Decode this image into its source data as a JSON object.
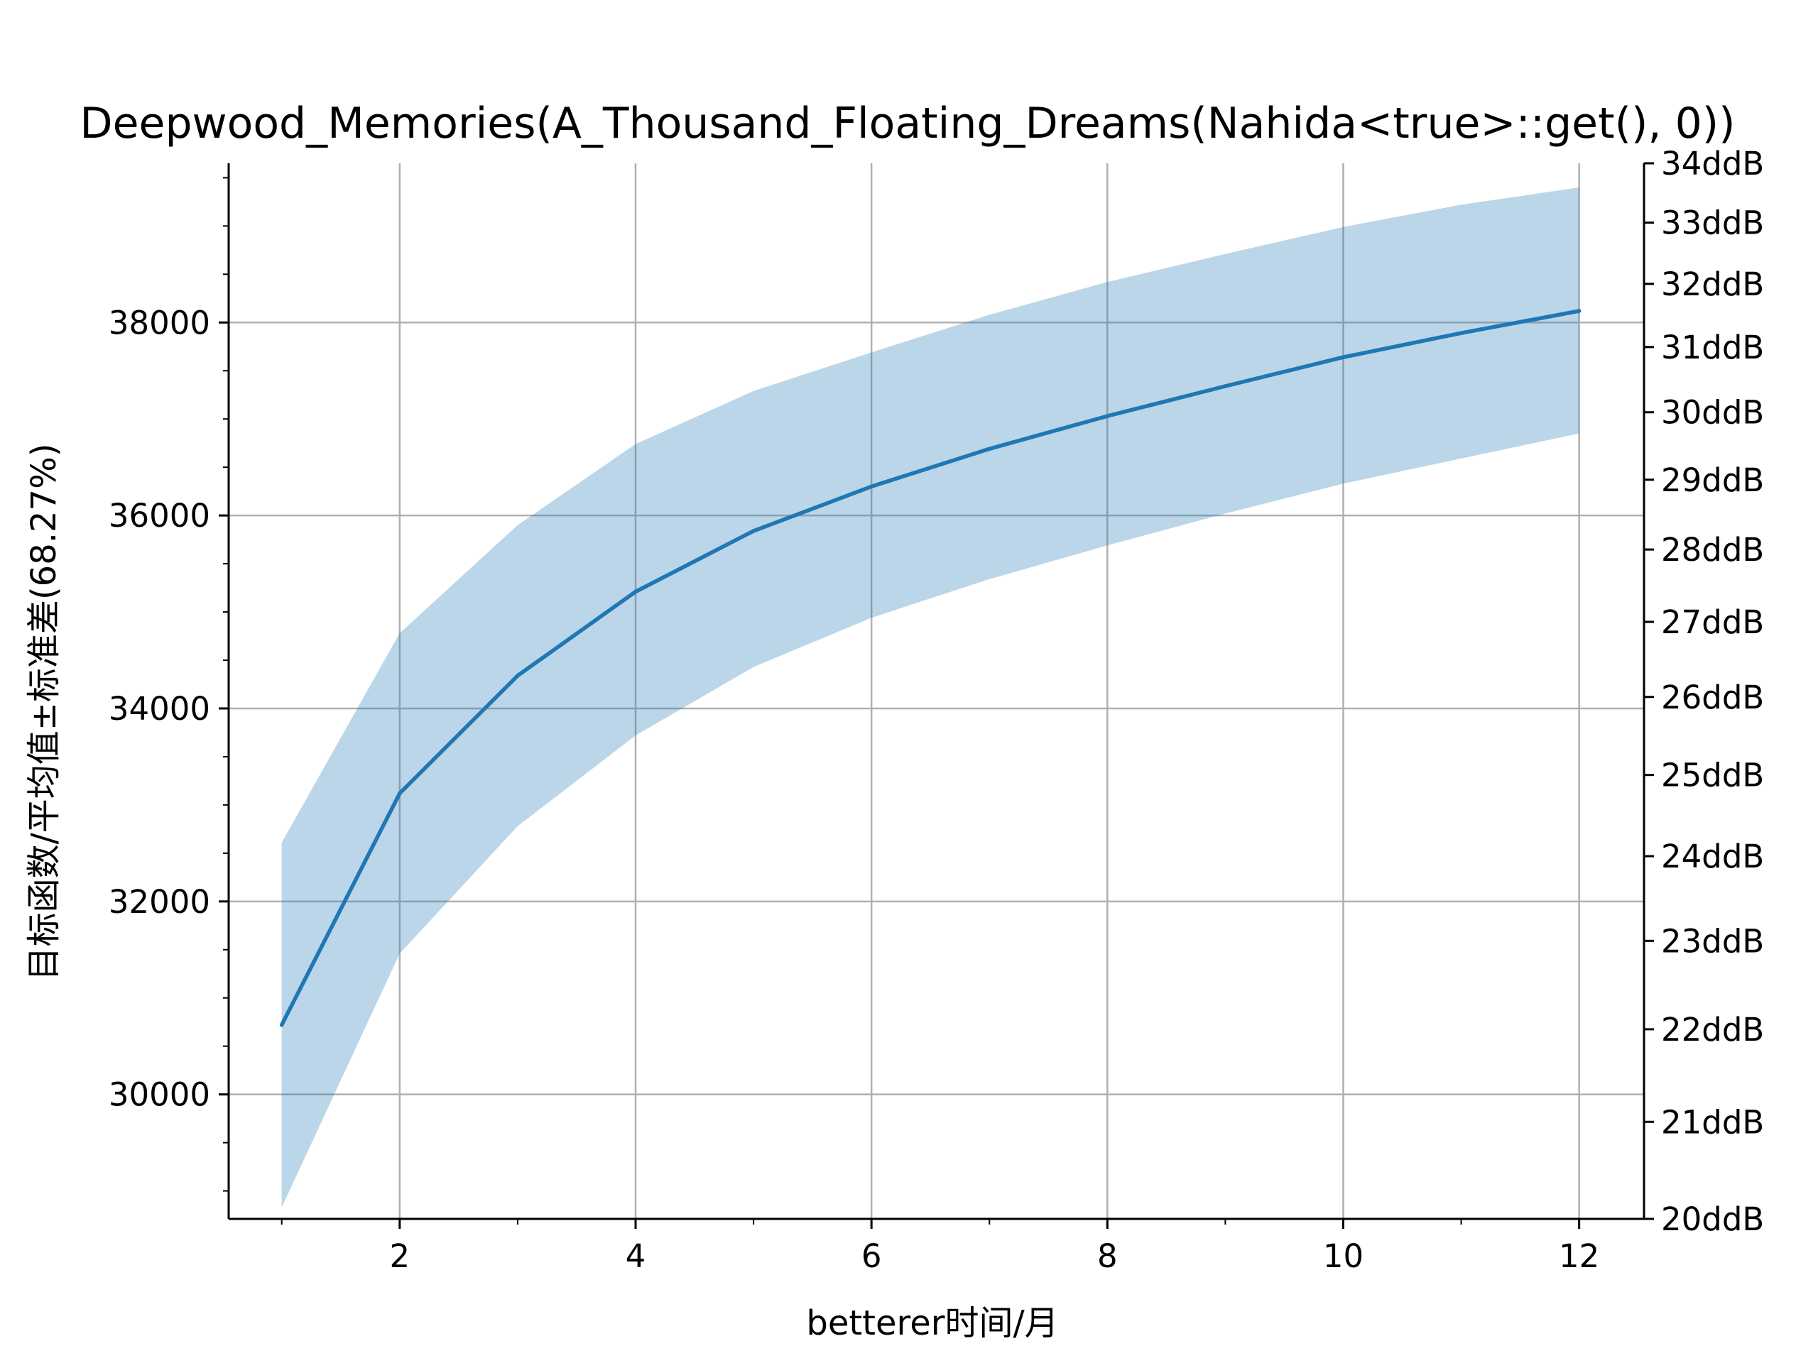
{
  "chart_data": {
    "type": "line",
    "title": "Deepwood_Memories(A_Thousand_Floating_Dreams(Nahida<true>::get(), 0))",
    "xlabel": "betterer时间/月",
    "ylabel": "目标函数/平均值±标准差(68.27%)",
    "x": [
      1,
      2,
      3,
      4,
      5,
      6,
      7,
      8,
      9,
      10,
      11,
      12
    ],
    "series": [
      {
        "values": [
          30720,
          33120,
          34340,
          35210,
          35840,
          36300,
          36690,
          37030,
          37340,
          37640,
          37890,
          38120
        ],
        "upper": [
          32610,
          34780,
          35900,
          36740,
          37290,
          37690,
          38080,
          38420,
          38710,
          38990,
          39220,
          39400
        ],
        "lower": [
          28830,
          31460,
          32780,
          33720,
          34430,
          34940,
          35340,
          35690,
          36020,
          36330,
          36590,
          36850
        ]
      }
    ],
    "xlim": [
      0.55,
      12.55
    ],
    "ylim": [
      28710,
      39650
    ],
    "xticks": [
      2,
      4,
      6,
      8,
      10,
      12
    ],
    "xminor": [
      1,
      3,
      5,
      7,
      9,
      11
    ],
    "yticks": [
      30000,
      32000,
      34000,
      36000,
      38000
    ],
    "y2lim": [
      20,
      34
    ],
    "y2ticks": [
      20,
      21,
      22,
      23,
      24,
      25,
      26,
      27,
      28,
      29,
      30,
      31,
      32,
      33,
      34
    ],
    "y2tick_labels": [
      "20ddB",
      "21ddB",
      "22ddB",
      "23ddB",
      "24ddB",
      "25ddB",
      "26ddB",
      "27ddB",
      "28ddB",
      "29ddB",
      "30ddB",
      "31ddB",
      "32ddB",
      "33ddB",
      "34ddB"
    ],
    "y2scale": "log",
    "grid": true,
    "colors": {
      "line": "#1f77b4",
      "band": "#1f77b4",
      "grid": "#b0b0b0"
    }
  }
}
